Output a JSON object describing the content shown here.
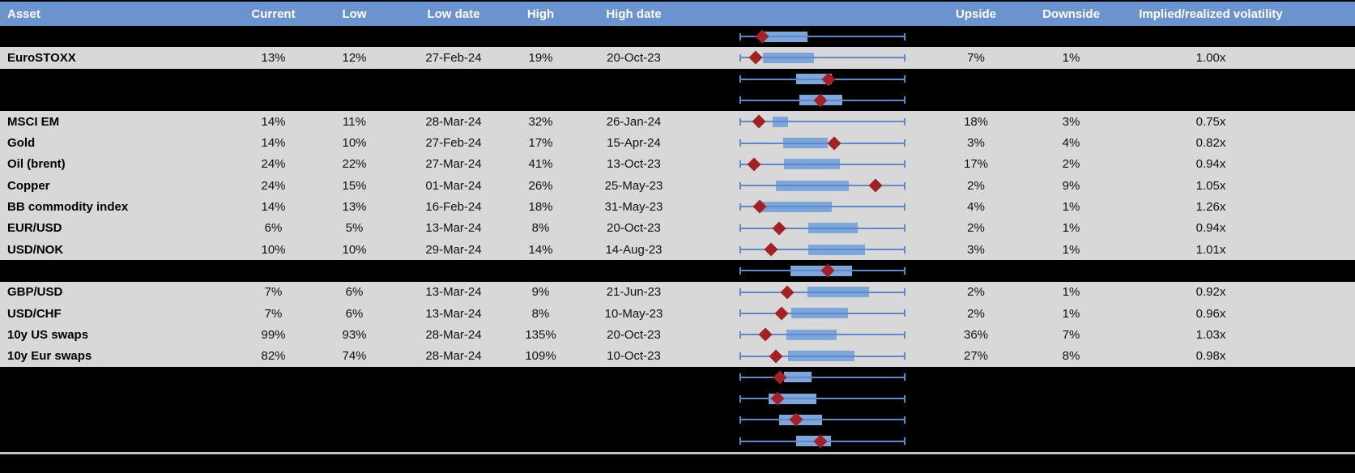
{
  "colors": {
    "header_bg": "#6B93CE",
    "header_text": "#FFFFFF",
    "data_row_bg": "#D8D8D8",
    "hidden_row_bg": "#000000",
    "box_fill": "#7DA6DA",
    "whisker_line": "#5E8AC7",
    "marker_red": "#A32125",
    "divider_gray": "#C4C4C4"
  },
  "header": {
    "columns": [
      "Asset",
      "Current",
      "Low",
      "Low date",
      "High",
      "High date",
      "",
      "Upside",
      "Downside",
      "Implied/realized volatility"
    ]
  },
  "chart_data": {
    "type": "boxplot",
    "orientation": "horizontal",
    "description": "Per-row box-and-whisker with red diamond marker; no axis labels shown. Values are fractions of the common whisker span [0,1].",
    "whisker_range": [
      0,
      1
    ],
    "series": [
      {
        "row": "hidden-1",
        "box_lo": 0.132,
        "box_hi": 0.41,
        "marker": 0.137
      },
      {
        "row": "EuroSTOXX",
        "box_lo": 0.141,
        "box_hi": 0.449,
        "marker": 0.098
      },
      {
        "row": "hidden-2",
        "box_lo": 0.341,
        "box_hi": 0.556,
        "marker": 0.537
      },
      {
        "row": "hidden-3",
        "box_lo": 0.361,
        "box_hi": 0.62,
        "marker": 0.488
      },
      {
        "row": "MSCI EM",
        "box_lo": 0.2,
        "box_hi": 0.293,
        "marker": 0.117
      },
      {
        "row": "Gold",
        "box_lo": 0.263,
        "box_hi": 0.532,
        "marker": 0.571
      },
      {
        "row": "Oil (brent)",
        "box_lo": 0.268,
        "box_hi": 0.605,
        "marker": 0.088
      },
      {
        "row": "Copper",
        "box_lo": 0.22,
        "box_hi": 0.659,
        "marker": 0.82
      },
      {
        "row": "BB commodity index",
        "box_lo": 0.132,
        "box_hi": 0.556,
        "marker": 0.122
      },
      {
        "row": "EUR/USD",
        "box_lo": 0.415,
        "box_hi": 0.712,
        "marker": 0.239
      },
      {
        "row": "USD/NOK",
        "box_lo": 0.415,
        "box_hi": 0.756,
        "marker": 0.19
      },
      {
        "row": "hidden-4",
        "box_lo": 0.307,
        "box_hi": 0.678,
        "marker": 0.532
      },
      {
        "row": "GBP/USD",
        "box_lo": 0.41,
        "box_hi": 0.78,
        "marker": 0.288
      },
      {
        "row": "USD/CHF",
        "box_lo": 0.312,
        "box_hi": 0.654,
        "marker": 0.254
      },
      {
        "row": "10y US swaps",
        "box_lo": 0.283,
        "box_hi": 0.585,
        "marker": 0.156
      },
      {
        "row": "10y Eur swaps",
        "box_lo": 0.293,
        "box_hi": 0.693,
        "marker": 0.22
      },
      {
        "row": "hidden-5",
        "box_lo": 0.268,
        "box_hi": 0.434,
        "marker": 0.244
      },
      {
        "row": "hidden-6",
        "box_lo": 0.176,
        "box_hi": 0.463,
        "marker": 0.229
      },
      {
        "row": "hidden-7",
        "box_lo": 0.239,
        "box_hi": 0.498,
        "marker": 0.341
      },
      {
        "row": "hidden-8",
        "box_lo": 0.341,
        "box_hi": 0.551,
        "marker": 0.488
      }
    ]
  },
  "table": {
    "rows": [
      {
        "type": "hidden",
        "asset": "",
        "current": "",
        "low": "",
        "low_date": "",
        "high": "",
        "high_date": "",
        "upside": "",
        "downside": "",
        "impl_real_vol": "",
        "chart": {
          "box_lo": 0.132,
          "box_hi": 0.41,
          "marker": 0.137
        }
      },
      {
        "type": "data",
        "asset": "EuroSTOXX",
        "current": "13%",
        "low": "12%",
        "low_date": "27-Feb-24",
        "high": "19%",
        "high_date": "20-Oct-23",
        "upside": "7%",
        "downside": "1%",
        "impl_real_vol": "1.00x",
        "chart": {
          "box_lo": 0.141,
          "box_hi": 0.449,
          "marker": 0.098
        }
      },
      {
        "type": "hidden",
        "asset": "",
        "current": "",
        "low": "",
        "low_date": "",
        "high": "",
        "high_date": "",
        "upside": "",
        "downside": "",
        "impl_real_vol": "",
        "chart": {
          "box_lo": 0.341,
          "box_hi": 0.556,
          "marker": 0.537
        }
      },
      {
        "type": "hidden",
        "asset": "",
        "current": "",
        "low": "",
        "low_date": "",
        "high": "",
        "high_date": "",
        "upside": "",
        "downside": "",
        "impl_real_vol": "",
        "chart": {
          "box_lo": 0.361,
          "box_hi": 0.62,
          "marker": 0.488
        }
      },
      {
        "type": "data",
        "asset": "MSCI EM",
        "current": "14%",
        "low": "11%",
        "low_date": "28-Mar-24",
        "high": "32%",
        "high_date": "26-Jan-24",
        "upside": "18%",
        "downside": "3%",
        "impl_real_vol": "0.75x",
        "chart": {
          "box_lo": 0.2,
          "box_hi": 0.293,
          "marker": 0.117
        }
      },
      {
        "type": "data",
        "asset": "Gold",
        "current": "14%",
        "low": "10%",
        "low_date": "27-Feb-24",
        "high": "17%",
        "high_date": "15-Apr-24",
        "upside": "3%",
        "downside": "4%",
        "impl_real_vol": "0.82x",
        "chart": {
          "box_lo": 0.263,
          "box_hi": 0.532,
          "marker": 0.571
        }
      },
      {
        "type": "data",
        "asset": "Oil (brent)",
        "current": "24%",
        "low": "22%",
        "low_date": "27-Mar-24",
        "high": "41%",
        "high_date": "13-Oct-23",
        "upside": "17%",
        "downside": "2%",
        "impl_real_vol": "0.94x",
        "chart": {
          "box_lo": 0.268,
          "box_hi": 0.605,
          "marker": 0.088
        }
      },
      {
        "type": "data",
        "asset": "Copper",
        "current": "24%",
        "low": "15%",
        "low_date": "01-Mar-24",
        "high": "26%",
        "high_date": "25-May-23",
        "upside": "2%",
        "downside": "9%",
        "impl_real_vol": "1.05x",
        "chart": {
          "box_lo": 0.22,
          "box_hi": 0.659,
          "marker": 0.82
        }
      },
      {
        "type": "data",
        "asset": "BB commodity index",
        "current": "14%",
        "low": "13%",
        "low_date": "16-Feb-24",
        "high": "18%",
        "high_date": "31-May-23",
        "upside": "4%",
        "downside": "1%",
        "impl_real_vol": "1.26x",
        "chart": {
          "box_lo": 0.132,
          "box_hi": 0.556,
          "marker": 0.122
        }
      },
      {
        "type": "data",
        "asset": "EUR/USD",
        "current": "6%",
        "low": "5%",
        "low_date": "13-Mar-24",
        "high": "8%",
        "high_date": "20-Oct-23",
        "upside": "2%",
        "downside": "1%",
        "impl_real_vol": "0.94x",
        "chart": {
          "box_lo": 0.415,
          "box_hi": 0.712,
          "marker": 0.239
        }
      },
      {
        "type": "data",
        "asset": "USD/NOK",
        "current": "10%",
        "low": "10%",
        "low_date": "29-Mar-24",
        "high": "14%",
        "high_date": "14-Aug-23",
        "upside": "3%",
        "downside": "1%",
        "impl_real_vol": "1.01x",
        "chart": {
          "box_lo": 0.415,
          "box_hi": 0.756,
          "marker": 0.19
        }
      },
      {
        "type": "hidden",
        "asset": "",
        "current": "",
        "low": "",
        "low_date": "",
        "high": "",
        "high_date": "",
        "upside": "",
        "downside": "",
        "impl_real_vol": "",
        "chart": {
          "box_lo": 0.307,
          "box_hi": 0.678,
          "marker": 0.532
        }
      },
      {
        "type": "data",
        "asset": "GBP/USD",
        "current": "7%",
        "low": "6%",
        "low_date": "13-Mar-24",
        "high": "9%",
        "high_date": "21-Jun-23",
        "upside": "2%",
        "downside": "1%",
        "impl_real_vol": "0.92x",
        "chart": {
          "box_lo": 0.41,
          "box_hi": 0.78,
          "marker": 0.288
        }
      },
      {
        "type": "data",
        "asset": "USD/CHF",
        "current": "7%",
        "low": "6%",
        "low_date": "13-Mar-24",
        "high": "8%",
        "high_date": "10-May-23",
        "upside": "2%",
        "downside": "1%",
        "impl_real_vol": "0.96x",
        "chart": {
          "box_lo": 0.312,
          "box_hi": 0.654,
          "marker": 0.254
        }
      },
      {
        "type": "data",
        "asset": "10y US swaps",
        "current": "99%",
        "low": "93%",
        "low_date": "28-Mar-24",
        "high": "135%",
        "high_date": "20-Oct-23",
        "upside": "36%",
        "downside": "7%",
        "impl_real_vol": "1.03x",
        "chart": {
          "box_lo": 0.283,
          "box_hi": 0.585,
          "marker": 0.156
        }
      },
      {
        "type": "data",
        "asset": "10y Eur swaps",
        "current": "82%",
        "low": "74%",
        "low_date": "28-Mar-24",
        "high": "109%",
        "high_date": "10-Oct-23",
        "upside": "27%",
        "downside": "8%",
        "impl_real_vol": "0.98x",
        "chart": {
          "box_lo": 0.293,
          "box_hi": 0.693,
          "marker": 0.22
        }
      },
      {
        "type": "hidden",
        "asset": "",
        "current": "",
        "low": "",
        "low_date": "",
        "high": "",
        "high_date": "",
        "upside": "",
        "downside": "",
        "impl_real_vol": "",
        "chart": {
          "box_lo": 0.268,
          "box_hi": 0.434,
          "marker": 0.244
        }
      },
      {
        "type": "hidden",
        "asset": "",
        "current": "",
        "low": "",
        "low_date": "",
        "high": "",
        "high_date": "",
        "upside": "",
        "downside": "",
        "impl_real_vol": "",
        "chart": {
          "box_lo": 0.176,
          "box_hi": 0.463,
          "marker": 0.229
        }
      },
      {
        "type": "hidden",
        "asset": "",
        "current": "",
        "low": "",
        "low_date": "",
        "high": "",
        "high_date": "",
        "upside": "",
        "downside": "",
        "impl_real_vol": "",
        "chart": {
          "box_lo": 0.239,
          "box_hi": 0.498,
          "marker": 0.341
        }
      },
      {
        "type": "hidden",
        "asset": "",
        "current": "",
        "low": "",
        "low_date": "",
        "high": "",
        "high_date": "",
        "upside": "",
        "downside": "",
        "impl_real_vol": "",
        "chart": {
          "box_lo": 0.341,
          "box_hi": 0.551,
          "marker": 0.488
        }
      }
    ]
  }
}
